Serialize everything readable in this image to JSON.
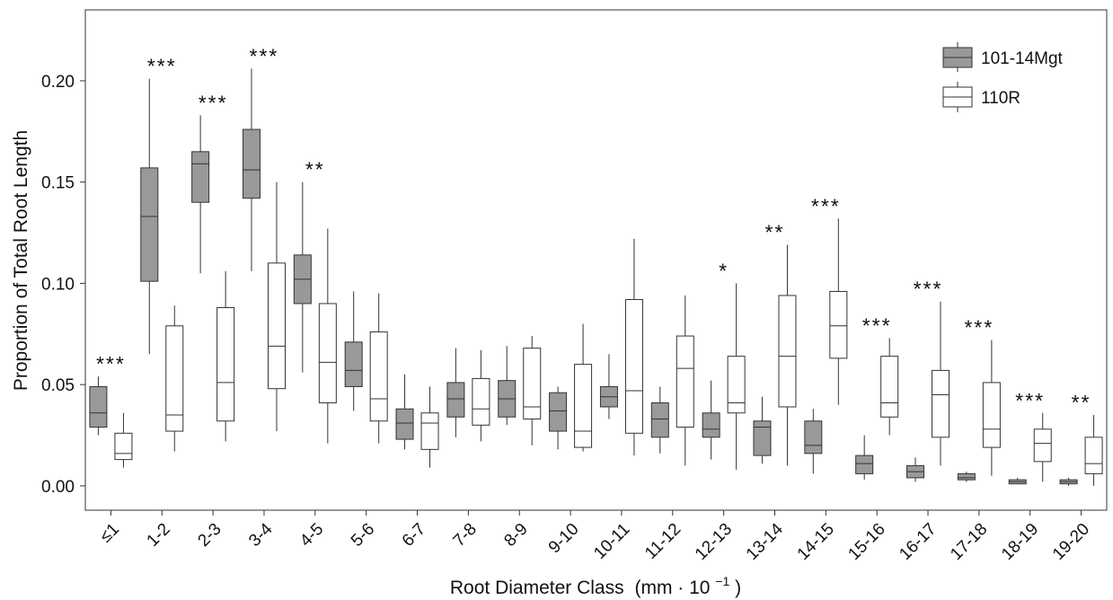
{
  "chart_data": {
    "type": "boxplot",
    "xlabel": "Root Diameter Class",
    "xlabel_unit": "(mm · 10",
    "xlabel_unit_exp": "−1",
    "xlabel_unit_close": ")",
    "ylabel": "Proportion of Total Root Length",
    "ylim": [
      -0.012,
      0.235
    ],
    "yticks": [
      0.0,
      0.05,
      0.1,
      0.15,
      0.2
    ],
    "ytick_labels": [
      "0.00",
      "0.05",
      "0.10",
      "0.15",
      "0.20"
    ],
    "legend_position": "top-right",
    "grid": false,
    "categories": [
      "≤1",
      "1-2",
      "2-3",
      "3-4",
      "4-5",
      "5-6",
      "6-7",
      "7-8",
      "8-9",
      "9-10",
      "10-11",
      "11-12",
      "12-13",
      "13-14",
      "14-15",
      "15-16",
      "16-17",
      "17-18",
      "18-19",
      "19-20"
    ],
    "significance": [
      "***",
      "***",
      "***",
      "***",
      "**",
      "",
      "",
      "",
      "",
      "",
      "",
      "",
      "*",
      "**",
      "***",
      "***",
      "***",
      "***",
      "***",
      "**"
    ],
    "series": [
      {
        "name": "101-14Mgt",
        "color": "#999999",
        "boxes": [
          {
            "min": 0.025,
            "q1": 0.029,
            "median": 0.036,
            "q3": 0.049,
            "max": 0.054
          },
          {
            "min": 0.065,
            "q1": 0.101,
            "median": 0.133,
            "q3": 0.157,
            "max": 0.201
          },
          {
            "min": 0.105,
            "q1": 0.14,
            "median": 0.159,
            "q3": 0.165,
            "max": 0.183
          },
          {
            "min": 0.106,
            "q1": 0.142,
            "median": 0.156,
            "q3": 0.176,
            "max": 0.206
          },
          {
            "min": 0.056,
            "q1": 0.09,
            "median": 0.102,
            "q3": 0.114,
            "max": 0.15
          },
          {
            "min": 0.037,
            "q1": 0.049,
            "median": 0.057,
            "q3": 0.071,
            "max": 0.096
          },
          {
            "min": 0.018,
            "q1": 0.023,
            "median": 0.031,
            "q3": 0.038,
            "max": 0.055
          },
          {
            "min": 0.024,
            "q1": 0.034,
            "median": 0.043,
            "q3": 0.051,
            "max": 0.068
          },
          {
            "min": 0.03,
            "q1": 0.034,
            "median": 0.043,
            "q3": 0.052,
            "max": 0.069
          },
          {
            "min": 0.018,
            "q1": 0.027,
            "median": 0.037,
            "q3": 0.046,
            "max": 0.049
          },
          {
            "min": 0.033,
            "q1": 0.039,
            "median": 0.044,
            "q3": 0.049,
            "max": 0.065
          },
          {
            "min": 0.016,
            "q1": 0.024,
            "median": 0.033,
            "q3": 0.041,
            "max": 0.049
          },
          {
            "min": 0.013,
            "q1": 0.024,
            "median": 0.028,
            "q3": 0.036,
            "max": 0.052
          },
          {
            "min": 0.011,
            "q1": 0.015,
            "median": 0.029,
            "q3": 0.032,
            "max": 0.044
          },
          {
            "min": 0.006,
            "q1": 0.016,
            "median": 0.02,
            "q3": 0.032,
            "max": 0.038
          },
          {
            "min": 0.003,
            "q1": 0.006,
            "median": 0.011,
            "q3": 0.015,
            "max": 0.025
          },
          {
            "min": 0.002,
            "q1": 0.004,
            "median": 0.007,
            "q3": 0.01,
            "max": 0.014
          },
          {
            "min": 0.002,
            "q1": 0.003,
            "median": 0.004,
            "q3": 0.006,
            "max": 0.007
          },
          {
            "min": 0.001,
            "q1": 0.001,
            "median": 0.002,
            "q3": 0.003,
            "max": 0.004
          },
          {
            "min": 0.0,
            "q1": 0.001,
            "median": 0.002,
            "q3": 0.003,
            "max": 0.004
          }
        ]
      },
      {
        "name": "110R",
        "color": "#ffffff",
        "boxes": [
          {
            "min": 0.009,
            "q1": 0.013,
            "median": 0.016,
            "q3": 0.026,
            "max": 0.036
          },
          {
            "min": 0.017,
            "q1": 0.027,
            "median": 0.035,
            "q3": 0.079,
            "max": 0.089
          },
          {
            "min": 0.022,
            "q1": 0.032,
            "median": 0.051,
            "q3": 0.088,
            "max": 0.106
          },
          {
            "min": 0.027,
            "q1": 0.048,
            "median": 0.069,
            "q3": 0.11,
            "max": 0.15
          },
          {
            "min": 0.021,
            "q1": 0.041,
            "median": 0.061,
            "q3": 0.09,
            "max": 0.127
          },
          {
            "min": 0.021,
            "q1": 0.032,
            "median": 0.043,
            "q3": 0.076,
            "max": 0.095
          },
          {
            "min": 0.009,
            "q1": 0.018,
            "median": 0.031,
            "q3": 0.036,
            "max": 0.049
          },
          {
            "min": 0.022,
            "q1": 0.03,
            "median": 0.038,
            "q3": 0.053,
            "max": 0.067
          },
          {
            "min": 0.02,
            "q1": 0.033,
            "median": 0.039,
            "q3": 0.068,
            "max": 0.074
          },
          {
            "min": 0.017,
            "q1": 0.019,
            "median": 0.027,
            "q3": 0.06,
            "max": 0.08
          },
          {
            "min": 0.015,
            "q1": 0.026,
            "median": 0.047,
            "q3": 0.092,
            "max": 0.122
          },
          {
            "min": 0.01,
            "q1": 0.029,
            "median": 0.058,
            "q3": 0.074,
            "max": 0.094
          },
          {
            "min": 0.008,
            "q1": 0.036,
            "median": 0.041,
            "q3": 0.064,
            "max": 0.1
          },
          {
            "min": 0.01,
            "q1": 0.039,
            "median": 0.064,
            "q3": 0.094,
            "max": 0.119
          },
          {
            "min": 0.04,
            "q1": 0.063,
            "median": 0.079,
            "q3": 0.096,
            "max": 0.132
          },
          {
            "min": 0.025,
            "q1": 0.034,
            "median": 0.041,
            "q3": 0.064,
            "max": 0.073
          },
          {
            "min": 0.01,
            "q1": 0.024,
            "median": 0.045,
            "q3": 0.057,
            "max": 0.091
          },
          {
            "min": 0.005,
            "q1": 0.019,
            "median": 0.028,
            "q3": 0.051,
            "max": 0.072
          },
          {
            "min": 0.002,
            "q1": 0.012,
            "median": 0.021,
            "q3": 0.028,
            "max": 0.036
          },
          {
            "min": 0.0,
            "q1": 0.006,
            "median": 0.011,
            "q3": 0.024,
            "max": 0.035
          }
        ]
      }
    ]
  }
}
